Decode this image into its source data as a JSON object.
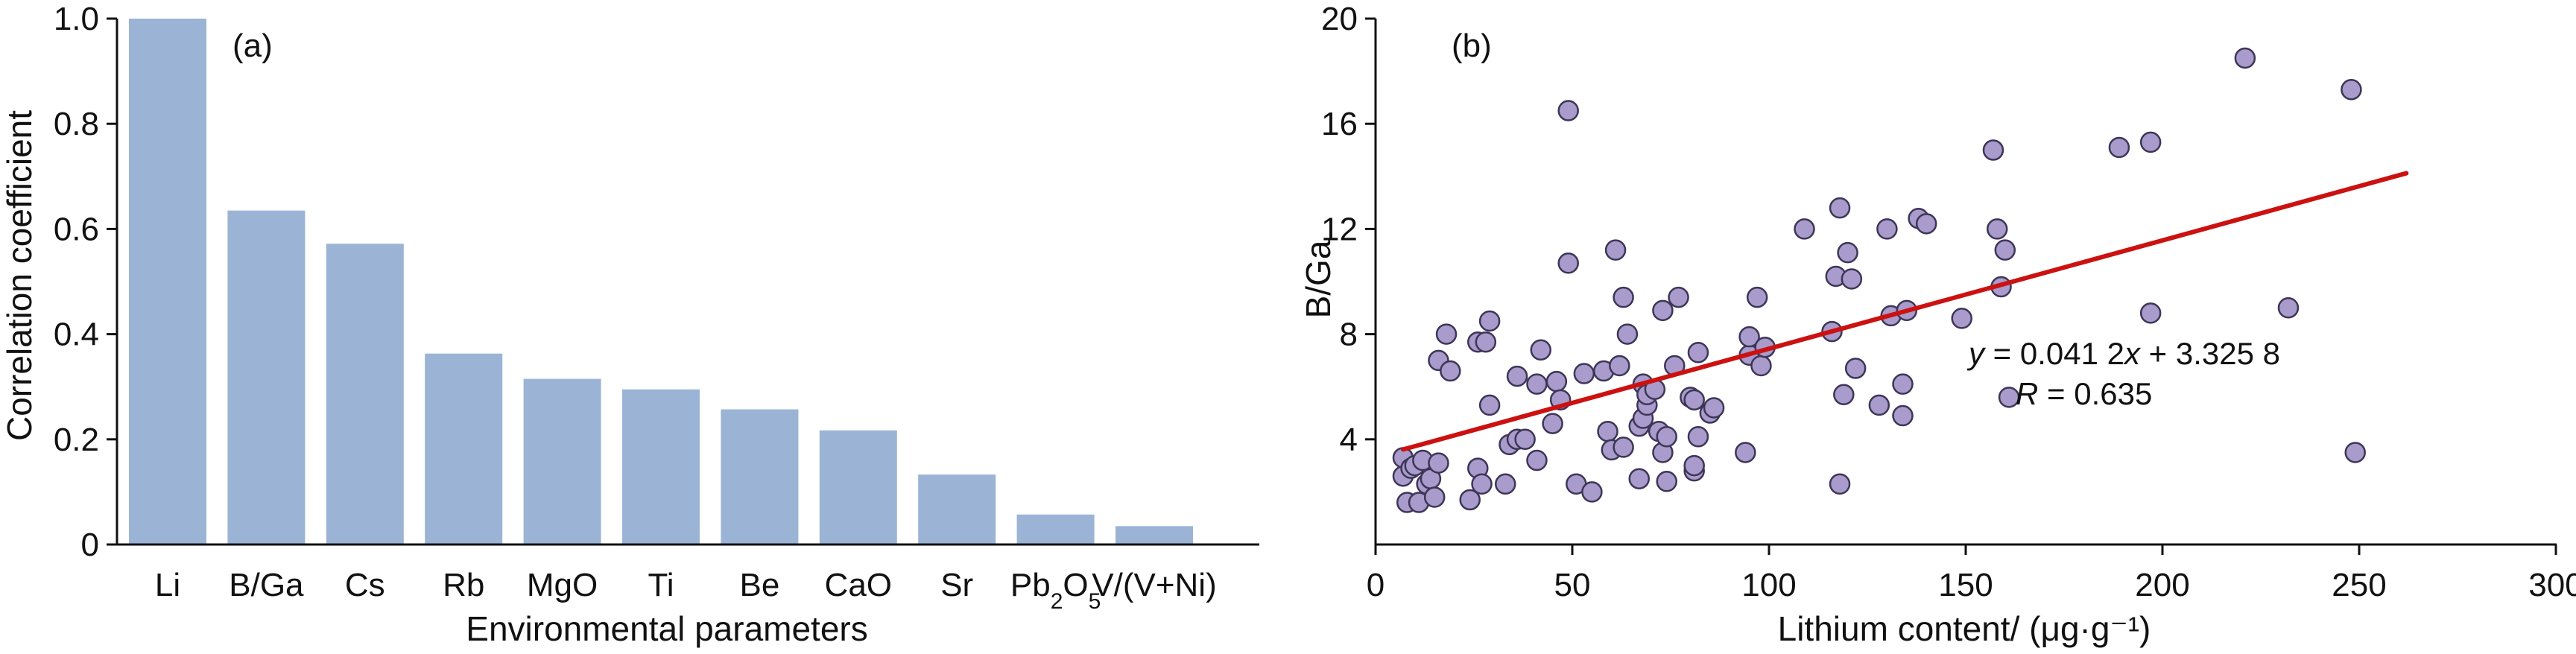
{
  "colors": {
    "bar": "#9bb4d6",
    "point_fill": "#a99bcb",
    "point_stroke": "#3d3657",
    "fit_line": "#cc1111",
    "axis": "#111111"
  },
  "chart_data": [
    {
      "type": "bar",
      "panel_label": "(a)",
      "xlabel": "Environmental parameters",
      "ylabel": "Correlation coefficient",
      "ylim": [
        0,
        1.0
      ],
      "y_ticks": [
        {
          "value": 0,
          "label": "0"
        },
        {
          "value": 0.2,
          "label": "0.2"
        },
        {
          "value": 0.4,
          "label": "0.4"
        },
        {
          "value": 0.6,
          "label": "0.6"
        },
        {
          "value": 0.8,
          "label": "0.8"
        },
        {
          "value": 1.0,
          "label": "1.0"
        }
      ],
      "categories": [
        "Li",
        "B/Ga",
        "Cs",
        "Rb",
        "MgO",
        "Ti",
        "Be",
        "CaO",
        "Sr",
        "Pb2O5",
        "V/(V+Ni)"
      ],
      "category_parts": [
        {
          "base": "Li"
        },
        {
          "base": "B/Ga"
        },
        {
          "base": "Cs"
        },
        {
          "base": "Rb"
        },
        {
          "base": "MgO"
        },
        {
          "base": "Ti"
        },
        {
          "base": "Be"
        },
        {
          "base": "CaO"
        },
        {
          "base": "Sr"
        },
        {
          "base": "Pb",
          "sub": "2",
          "rest": "O",
          "sub2": "5"
        },
        {
          "base": "V/(V+Ni)"
        }
      ],
      "values": [
        1.0,
        0.635,
        0.572,
        0.363,
        0.315,
        0.295,
        0.257,
        0.217,
        0.133,
        0.057,
        0.035
      ]
    },
    {
      "type": "scatter",
      "panel_label": "(b)",
      "xlabel": "Lithium content/ (μg·g⁻¹)",
      "ylabel": "B/Ga",
      "xlim": [
        0,
        300
      ],
      "ylim": [
        0,
        20
      ],
      "x_ticks": [
        {
          "value": 0,
          "label": "0"
        },
        {
          "value": 50,
          "label": "50"
        },
        {
          "value": 100,
          "label": "100"
        },
        {
          "value": 150,
          "label": "150"
        },
        {
          "value": 200,
          "label": "200"
        },
        {
          "value": 250,
          "label": "250"
        },
        {
          "value": 300,
          "label": "300"
        }
      ],
      "y_ticks": [
        {
          "value": 4,
          "label": "4"
        },
        {
          "value": 8,
          "label": "8"
        },
        {
          "value": 12,
          "label": "12"
        },
        {
          "value": 16,
          "label": "16"
        },
        {
          "value": 20,
          "label": "20"
        }
      ],
      "fit": {
        "slope": 0.0412,
        "intercept": 3.3258,
        "x_range": [
          7,
          262
        ],
        "equation": {
          "y": "y",
          "eq": " = 0.041 2",
          "x": "x",
          "rest": " + 3.325 8"
        },
        "r_text": {
          "r": "R",
          "eq": " = 0.635"
        }
      },
      "points": [
        [
          7,
          3.3
        ],
        [
          7,
          2.6
        ],
        [
          8,
          1.6
        ],
        [
          9,
          2.9
        ],
        [
          10,
          3.0
        ],
        [
          11,
          1.6
        ],
        [
          12,
          3.2
        ],
        [
          13,
          2.3
        ],
        [
          14,
          2.5
        ],
        [
          15,
          1.8
        ],
        [
          16,
          3.1
        ],
        [
          16,
          7.0
        ],
        [
          18,
          8.0
        ],
        [
          19,
          6.6
        ],
        [
          24,
          1.7
        ],
        [
          26,
          2.9
        ],
        [
          26,
          7.7
        ],
        [
          27,
          2.3
        ],
        [
          28,
          7.7
        ],
        [
          29,
          5.3
        ],
        [
          29,
          8.5
        ],
        [
          33,
          2.3
        ],
        [
          34,
          3.8
        ],
        [
          36,
          4.0
        ],
        [
          36,
          6.4
        ],
        [
          38,
          4.0
        ],
        [
          41,
          3.2
        ],
        [
          41,
          6.1
        ],
        [
          42,
          7.4
        ],
        [
          45,
          4.6
        ],
        [
          46,
          6.2
        ],
        [
          47,
          5.5
        ],
        [
          49,
          10.7
        ],
        [
          49,
          16.5
        ],
        [
          51,
          2.3
        ],
        [
          53,
          6.5
        ],
        [
          55,
          2.0
        ],
        [
          58,
          6.6
        ],
        [
          59,
          4.3
        ],
        [
          60,
          3.6
        ],
        [
          61,
          11.2
        ],
        [
          62,
          6.8
        ],
        [
          63,
          3.7
        ],
        [
          63,
          9.4
        ],
        [
          64,
          8.0
        ],
        [
          67,
          2.5
        ],
        [
          67,
          4.5
        ],
        [
          68,
          4.8
        ],
        [
          68,
          6.1
        ],
        [
          69,
          5.3
        ],
        [
          69,
          5.7
        ],
        [
          71,
          5.9
        ],
        [
          72,
          4.3
        ],
        [
          73,
          3.5
        ],
        [
          73,
          8.9
        ],
        [
          74,
          2.4
        ],
        [
          74,
          4.1
        ],
        [
          76,
          6.8
        ],
        [
          77,
          9.4
        ],
        [
          80,
          5.6
        ],
        [
          81,
          2.8
        ],
        [
          81,
          3.0
        ],
        [
          81,
          5.5
        ],
        [
          82,
          4.1
        ],
        [
          82,
          7.3
        ],
        [
          85,
          5.0
        ],
        [
          86,
          5.2
        ],
        [
          94,
          3.5
        ],
        [
          95,
          7.2
        ],
        [
          95,
          7.9
        ],
        [
          97,
          9.4
        ],
        [
          98,
          6.8
        ],
        [
          99,
          7.5
        ],
        [
          109,
          12.0
        ],
        [
          116,
          8.1
        ],
        [
          117,
          10.2
        ],
        [
          118,
          2.3
        ],
        [
          118,
          12.8
        ],
        [
          119,
          5.7
        ],
        [
          120,
          11.1
        ],
        [
          121,
          10.1
        ],
        [
          122,
          6.7
        ],
        [
          128,
          5.3
        ],
        [
          130,
          12.0
        ],
        [
          131,
          8.7
        ],
        [
          134,
          4.9
        ],
        [
          134,
          6.1
        ],
        [
          135,
          8.9
        ],
        [
          138,
          12.4
        ],
        [
          140,
          12.2
        ],
        [
          149,
          8.6
        ],
        [
          157,
          15.0
        ],
        [
          158,
          12.0
        ],
        [
          159,
          9.8
        ],
        [
          160,
          11.2
        ],
        [
          161,
          5.6
        ],
        [
          189,
          15.1
        ],
        [
          197,
          15.3
        ],
        [
          197,
          8.8
        ],
        [
          221,
          18.5
        ],
        [
          232,
          9.0
        ],
        [
          248,
          17.3
        ],
        [
          249,
          3.5
        ]
      ]
    }
  ]
}
